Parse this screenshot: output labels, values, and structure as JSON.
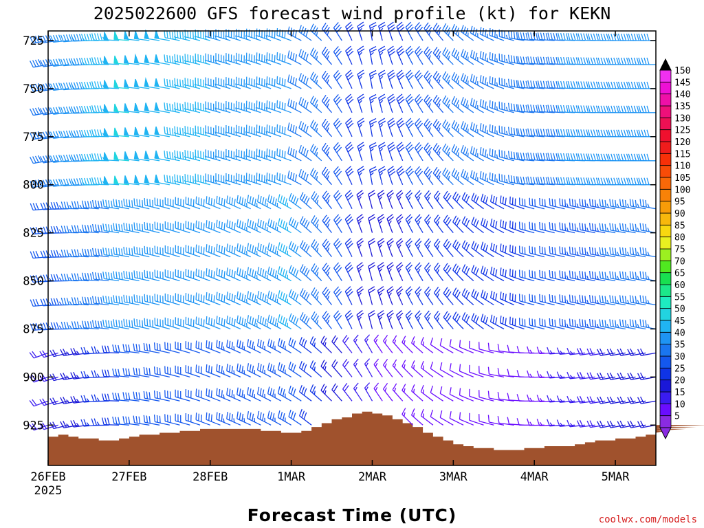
{
  "chart_data": {
    "type": "wind-barb profile",
    "title": "2025022600 GFS forecast wind profile (kt) for KEKN",
    "xlabel": "Forecast Time (UTC)",
    "ylabel": "",
    "units": "kt",
    "x_start": "2025-02-26T00:00Z",
    "x_end": "2025-03-05T12:00Z",
    "x_step_hours": 3,
    "x_ticks": [
      {
        "label": "26FEB",
        "sub": "2025",
        "date": "2025-02-26T00:00Z"
      },
      {
        "label": "27FEB",
        "sub": "",
        "date": "2025-02-27T00:00Z"
      },
      {
        "label": "28FEB",
        "sub": "",
        "date": "2025-02-28T00:00Z"
      },
      {
        "label": "1MAR",
        "sub": "",
        "date": "2025-03-01T00:00Z"
      },
      {
        "label": "2MAR",
        "sub": "",
        "date": "2025-03-02T00:00Z"
      },
      {
        "label": "3MAR",
        "sub": "",
        "date": "2025-03-03T00:00Z"
      },
      {
        "label": "4MAR",
        "sub": "",
        "date": "2025-03-04T00:00Z"
      },
      {
        "label": "5MAR",
        "sub": "",
        "date": "2025-03-05T00:00Z"
      }
    ],
    "y_ticks": [
      725,
      750,
      775,
      800,
      825,
      850,
      875,
      900,
      925
    ],
    "ylim": [
      946,
      720
    ],
    "pressure_levels": [
      725,
      737.5,
      750,
      762.5,
      775,
      787.5,
      800,
      812.5,
      825,
      837.5,
      850,
      862.5,
      875,
      887.5,
      900,
      912.5,
      925
    ],
    "colorbar": {
      "levels": [
        5,
        10,
        15,
        20,
        25,
        30,
        35,
        40,
        45,
        50,
        55,
        60,
        65,
        70,
        75,
        80,
        85,
        90,
        95,
        100,
        105,
        110,
        115,
        120,
        125,
        130,
        135,
        140,
        145,
        150
      ],
      "colors": [
        "#8a2be2",
        "#6a0dff",
        "#3a1cf0",
        "#1a18d8",
        "#0f34e6",
        "#1458ee",
        "#1a76f0",
        "#1e94f4",
        "#20b4f2",
        "#22d4e0",
        "#1eecc0",
        "#1ce88a",
        "#18e050",
        "#50e820",
        "#9cf020",
        "#e8f020",
        "#f8d810",
        "#f8b80c",
        "#f89c08",
        "#f88208",
        "#f86808",
        "#f84c08",
        "#f83008",
        "#f01c1c",
        "#f0102e",
        "#ee1054",
        "#ee107a",
        "#ee10a8",
        "#ee10d4",
        "#f030f0"
      ]
    },
    "surface_pressure": [
      931,
      930,
      931,
      932,
      932,
      933,
      933,
      932,
      931,
      930,
      930,
      929,
      929,
      928,
      928,
      927,
      927,
      927,
      927,
      927,
      927,
      928,
      928,
      929,
      929,
      928,
      926,
      924,
      922,
      921,
      919,
      918,
      919,
      920,
      922,
      924,
      926,
      929,
      931,
      933,
      935,
      936,
      937,
      937,
      938,
      938,
      938,
      937,
      937,
      936,
      936,
      936,
      935,
      934,
      933,
      933,
      932,
      932,
      931,
      930,
      929,
      928,
      928,
      927,
      926,
      925
    ],
    "winds": {
      "note": "direction (deg, meteorological) and speed (kt), per pressure band and forecast day",
      "days": [
        "26FEB",
        "27FEB",
        "28FEB",
        "1MAR",
        "2MAR",
        "3MAR",
        "4MAR",
        "5MAR"
      ],
      "upper_725_800": {
        "dir": [
          260,
          275,
          285,
          290,
          350,
          315,
          275,
          270
        ],
        "spd": [
          38,
          50,
          45,
          42,
          25,
          35,
          38,
          42
        ]
      },
      "middle_800_875": {
        "dir": [
          265,
          280,
          290,
          300,
          345,
          320,
          285,
          280
        ],
        "spd": [
          32,
          42,
          40,
          45,
          22,
          28,
          30,
          35
        ]
      },
      "lower_875_925": {
        "dir": [
          250,
          275,
          290,
          300,
          330,
          300,
          270,
          260
        ],
        "spd": [
          18,
          30,
          32,
          34,
          15,
          12,
          12,
          20
        ]
      }
    }
  },
  "credit": "coolwx.com/models"
}
